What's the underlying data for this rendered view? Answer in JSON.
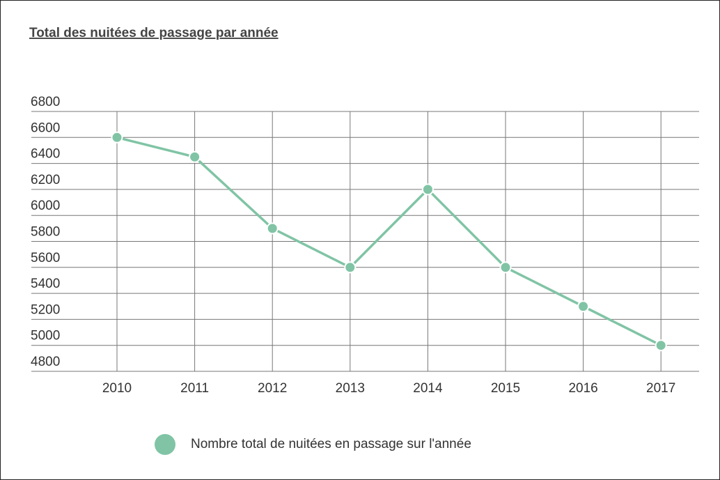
{
  "chart_data": {
    "type": "line",
    "title": "Total des nuitées de passage par année",
    "categories": [
      "2010",
      "2011",
      "2012",
      "2013",
      "2014",
      "2015",
      "2016",
      "2017"
    ],
    "series": [
      {
        "name": "Nombre total de nuitées en passage sur l'année",
        "color": "#80c4a5",
        "values": [
          6600,
          6450,
          5900,
          5600,
          6200,
          5600,
          5300,
          5000
        ]
      }
    ],
    "ylim": [
      4800,
      6800
    ],
    "yticks": [
      4800,
      5000,
      5200,
      5400,
      5600,
      5800,
      6000,
      6200,
      6400,
      6600,
      6800
    ],
    "grid": true,
    "legend": "bottom"
  }
}
